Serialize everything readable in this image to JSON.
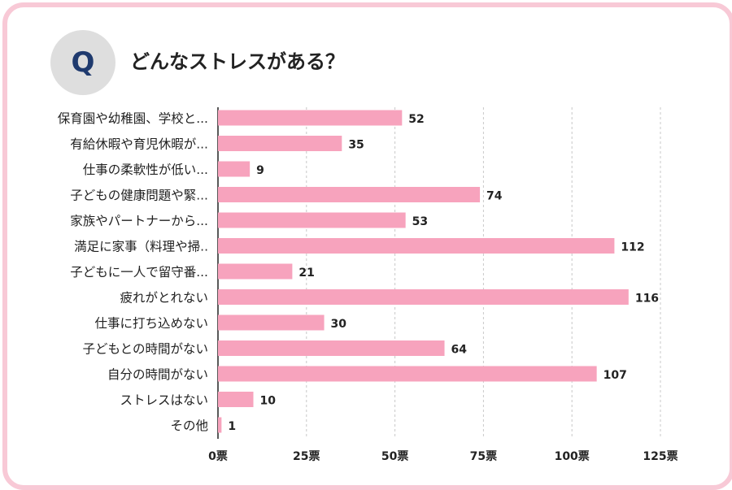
{
  "header": {
    "q_badge": "Q",
    "question": "どんなストレスがある？"
  },
  "colors": {
    "bar": "#f7a3bd",
    "frame": "#f8c9d6",
    "badge_bg": "#dedede",
    "badge_text": "#1f3a6e",
    "grid": "#c8c8c8",
    "axis": "#222222"
  },
  "chart_data": {
    "type": "bar",
    "orientation": "horizontal",
    "categories": [
      "保育園や幼稚園、学校と...",
      "有給休暇や育児休暇が...",
      "仕事の柔軟性が低い...",
      "子どもの健康問題や緊...",
      "家族やパートナーから...",
      "満足に家事（料理や掃..",
      "子どもに一人で留守番...",
      "疲れがとれない",
      "仕事に打ち込めない",
      "子どもとの時間がない",
      "自分の時間がない",
      "ストレスはない",
      "その他"
    ],
    "values": [
      52,
      35,
      9,
      74,
      53,
      112,
      21,
      116,
      30,
      64,
      107,
      10,
      1
    ],
    "xlim": [
      0,
      125
    ],
    "xticks": [
      0,
      25,
      50,
      75,
      100,
      125
    ],
    "tick_labels": [
      "0票",
      "25票",
      "50票",
      "75票",
      "100票",
      "125票"
    ],
    "unit": "票",
    "grid": "vertical-dashed",
    "legend": "none"
  }
}
